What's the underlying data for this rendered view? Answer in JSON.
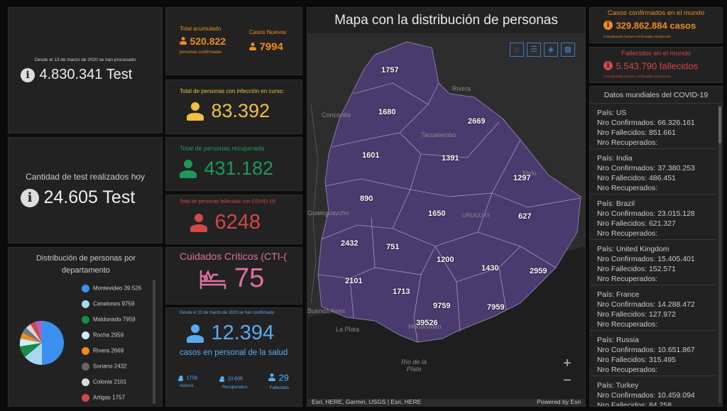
{
  "tests_total": {
    "caption": "Desde el 13 de marzo de 2020 se han procesado",
    "value": "4.830.341 Test"
  },
  "tests_today": {
    "caption": "Cantidad de test realizados hoy",
    "value": "24.605 Test"
  },
  "accum": {
    "label": "Total acumulado",
    "value": "520.822",
    "sub": "personas confirmadas",
    "new_label": "Casos Nuevos",
    "new_value": "7994"
  },
  "active": {
    "label": "Total de personas con infección en curso:",
    "value": "83.392"
  },
  "recovered": {
    "label": "Total de personas recuperada",
    "value": "431.182"
  },
  "deceased": {
    "label": "Total de personas fallecidas con COVID-19:",
    "value": "6248"
  },
  "critical": {
    "label": "Cuidados Críticos (CTI-(",
    "value": "75"
  },
  "health": {
    "caption": "Desde el 13 de marzo de 2020 se han confirmado",
    "value": "12.394",
    "sub": "casos en personal de la salud",
    "active_value": "1759",
    "active_label": "Activos",
    "recovered_value": "10.606",
    "recovered_label": "Recuperados",
    "deceased_value": "29",
    "deceased_label": "Fallecidos"
  },
  "pie": {
    "title": "Distribución de personas por departamento",
    "items": [
      {
        "label": "Montevideo 39.526",
        "color": "#3b8ff0"
      },
      {
        "label": "Canelones 9759",
        "color": "#a8d8f0"
      },
      {
        "label": "Maldonado 7959",
        "color": "#1a8a4a"
      },
      {
        "label": "Rocha 2959",
        "color": "#d0ecfa"
      },
      {
        "label": "Rivera 2669",
        "color": "#f08c1a"
      },
      {
        "label": "Soriano 2432",
        "color": "#666666"
      },
      {
        "label": "Colonia 2101",
        "color": "#d8d8d8"
      },
      {
        "label": "Artigas 1757",
        "color": "#d04848"
      }
    ]
  },
  "map": {
    "title": "Mapa con la distribución de personas",
    "attribution": "Esri, HERE, Garmin, USGS | Esri, HERE",
    "powered": "Powered by Esri",
    "labels": [
      "1757",
      "1680",
      "2669",
      "1601",
      "1391",
      "1297",
      "890",
      "1650",
      "627",
      "2432",
      "751",
      "1200",
      "1430",
      "2959",
      "2101",
      "1713",
      "9759",
      "7959",
      "39526"
    ],
    "cities": [
      "Rivera",
      "Concordia",
      "Tacuarembo",
      "Melo",
      "Gualeguaychu",
      "URUGUAY",
      "Buenos Aires",
      "La Plata",
      "Montevideo",
      "Rio de la Plata"
    ]
  },
  "world_confirmed": {
    "label": "Casos confirmados en el mundo",
    "value": "329.862.884 casos",
    "sub": "Considerando fuentes confirmadas oficialmente"
  },
  "world_deaths": {
    "label": "Fallecidos en el mundo",
    "value": "5.543.790 fallecidos",
    "sub": "Considerando fuentes confirmadas oficialmente"
  },
  "world": {
    "title": "Datos mundiales del COVID-19",
    "countries": [
      {
        "pais": "País: US",
        "conf": "Nro Confirmados: 66.326.161",
        "fall": "Nro Fallecidos: 851.661",
        "rec": "Nro Recuperados:"
      },
      {
        "pais": "País: India",
        "conf": "Nro Confirmados: 37.380.253",
        "fall": "Nro Fallecidos: 486.451",
        "rec": "Nro Recuperados:"
      },
      {
        "pais": "País: Brazil",
        "conf": "Nro Confirmados: 23.015.128",
        "fall": "Nro Fallecidos: 621.327",
        "rec": "Nro Recuperados:"
      },
      {
        "pais": "País: United Kingdom",
        "conf": "Nro Confirmados: 15.405.401",
        "fall": "Nro Fallecidos: 152.571",
        "rec": "Nro Recuperados:"
      },
      {
        "pais": "País: France",
        "conf": "Nro Confirmados: 14.288.472",
        "fall": "Nro Fallecidos: 127.972",
        "rec": "Nro Recuperados:"
      },
      {
        "pais": "País: Russia",
        "conf": "Nro Confirmados: 10.651.867",
        "fall": "Nro Fallecidos: 315.495",
        "rec": "Nro Recuperados:"
      },
      {
        "pais": "País: Turkey",
        "conf": "Nro Confirmados: 10.459.094",
        "fall": "Nro Fallecidos: 84.258",
        "rec": ""
      }
    ]
  }
}
